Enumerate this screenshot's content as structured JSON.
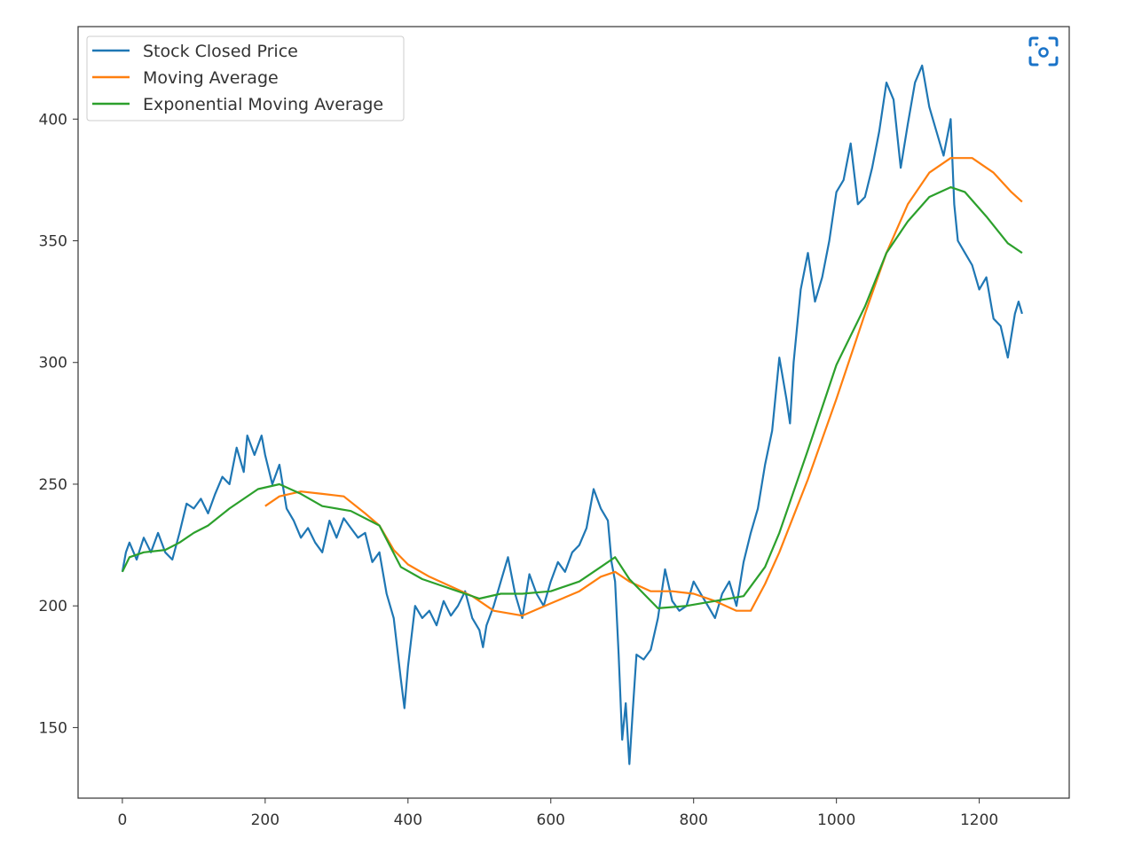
{
  "chart_data": {
    "type": "line",
    "title": "",
    "xlabel": "",
    "ylabel": "",
    "xlim": [
      -62,
      1326
    ],
    "ylim": [
      121,
      438
    ],
    "x_ticks": [
      0,
      200,
      400,
      600,
      800,
      1000,
      1200
    ],
    "y_ticks": [
      150,
      200,
      250,
      300,
      350,
      400
    ],
    "grid": false,
    "legend_position": "top-left",
    "series": [
      {
        "name": "Stock Closed Price",
        "color": "#1f77b4",
        "points": [
          [
            0,
            214
          ],
          [
            5,
            222
          ],
          [
            10,
            226
          ],
          [
            20,
            219
          ],
          [
            30,
            228
          ],
          [
            40,
            222
          ],
          [
            50,
            230
          ],
          [
            60,
            222
          ],
          [
            70,
            219
          ],
          [
            80,
            230
          ],
          [
            90,
            242
          ],
          [
            100,
            240
          ],
          [
            110,
            244
          ],
          [
            120,
            238
          ],
          [
            130,
            246
          ],
          [
            140,
            253
          ],
          [
            150,
            250
          ],
          [
            160,
            265
          ],
          [
            170,
            255
          ],
          [
            175,
            270
          ],
          [
            185,
            262
          ],
          [
            195,
            270
          ],
          [
            200,
            262
          ],
          [
            210,
            250
          ],
          [
            220,
            258
          ],
          [
            230,
            240
          ],
          [
            240,
            235
          ],
          [
            250,
            228
          ],
          [
            260,
            232
          ],
          [
            270,
            226
          ],
          [
            280,
            222
          ],
          [
            290,
            235
          ],
          [
            300,
            228
          ],
          [
            310,
            236
          ],
          [
            320,
            232
          ],
          [
            330,
            228
          ],
          [
            340,
            230
          ],
          [
            350,
            218
          ],
          [
            360,
            222
          ],
          [
            370,
            205
          ],
          [
            380,
            195
          ],
          [
            390,
            170
          ],
          [
            395,
            158
          ],
          [
            400,
            175
          ],
          [
            410,
            200
          ],
          [
            420,
            195
          ],
          [
            430,
            198
          ],
          [
            440,
            192
          ],
          [
            450,
            202
          ],
          [
            460,
            196
          ],
          [
            470,
            200
          ],
          [
            480,
            206
          ],
          [
            490,
            195
          ],
          [
            500,
            190
          ],
          [
            505,
            183
          ],
          [
            510,
            192
          ],
          [
            520,
            200
          ],
          [
            530,
            210
          ],
          [
            540,
            220
          ],
          [
            550,
            205
          ],
          [
            560,
            195
          ],
          [
            570,
            213
          ],
          [
            580,
            205
          ],
          [
            590,
            200
          ],
          [
            600,
            210
          ],
          [
            610,
            218
          ],
          [
            620,
            214
          ],
          [
            630,
            222
          ],
          [
            640,
            225
          ],
          [
            650,
            232
          ],
          [
            660,
            248
          ],
          [
            670,
            240
          ],
          [
            680,
            235
          ],
          [
            685,
            218
          ],
          [
            690,
            210
          ],
          [
            695,
            180
          ],
          [
            700,
            145
          ],
          [
            705,
            160
          ],
          [
            710,
            135
          ],
          [
            715,
            158
          ],
          [
            720,
            180
          ],
          [
            730,
            178
          ],
          [
            740,
            182
          ],
          [
            750,
            195
          ],
          [
            760,
            215
          ],
          [
            770,
            202
          ],
          [
            780,
            198
          ],
          [
            790,
            200
          ],
          [
            800,
            210
          ],
          [
            810,
            205
          ],
          [
            820,
            200
          ],
          [
            830,
            195
          ],
          [
            840,
            205
          ],
          [
            850,
            210
          ],
          [
            860,
            200
          ],
          [
            870,
            218
          ],
          [
            880,
            230
          ],
          [
            890,
            240
          ],
          [
            900,
            258
          ],
          [
            910,
            272
          ],
          [
            920,
            302
          ],
          [
            930,
            285
          ],
          [
            935,
            275
          ],
          [
            940,
            300
          ],
          [
            950,
            330
          ],
          [
            960,
            345
          ],
          [
            970,
            325
          ],
          [
            980,
            335
          ],
          [
            990,
            350
          ],
          [
            1000,
            370
          ],
          [
            1010,
            375
          ],
          [
            1020,
            390
          ],
          [
            1030,
            365
          ],
          [
            1040,
            368
          ],
          [
            1050,
            380
          ],
          [
            1060,
            395
          ],
          [
            1070,
            415
          ],
          [
            1080,
            408
          ],
          [
            1090,
            380
          ],
          [
            1100,
            398
          ],
          [
            1110,
            415
          ],
          [
            1120,
            422
          ],
          [
            1130,
            405
          ],
          [
            1140,
            395
          ],
          [
            1150,
            385
          ],
          [
            1160,
            400
          ],
          [
            1165,
            365
          ],
          [
            1170,
            350
          ],
          [
            1180,
            345
          ],
          [
            1190,
            340
          ],
          [
            1200,
            330
          ],
          [
            1210,
            335
          ],
          [
            1220,
            318
          ],
          [
            1230,
            315
          ],
          [
            1240,
            302
          ],
          [
            1250,
            320
          ],
          [
            1255,
            325
          ],
          [
            1260,
            320
          ]
        ]
      },
      {
        "name": "Moving Average",
        "color": "#ff7f0e",
        "points": [
          [
            200,
            241
          ],
          [
            220,
            245
          ],
          [
            250,
            247
          ],
          [
            280,
            246
          ],
          [
            310,
            245
          ],
          [
            340,
            238
          ],
          [
            360,
            233
          ],
          [
            380,
            223
          ],
          [
            400,
            217
          ],
          [
            430,
            212
          ],
          [
            460,
            208
          ],
          [
            490,
            204
          ],
          [
            520,
            198
          ],
          [
            560,
            196
          ],
          [
            600,
            201
          ],
          [
            640,
            206
          ],
          [
            670,
            212
          ],
          [
            690,
            214
          ],
          [
            710,
            210
          ],
          [
            740,
            206
          ],
          [
            770,
            206
          ],
          [
            800,
            205
          ],
          [
            830,
            202
          ],
          [
            860,
            198
          ],
          [
            880,
            198
          ],
          [
            900,
            209
          ],
          [
            920,
            222
          ],
          [
            960,
            252
          ],
          [
            1000,
            285
          ],
          [
            1040,
            320
          ],
          [
            1070,
            345
          ],
          [
            1100,
            365
          ],
          [
            1130,
            378
          ],
          [
            1160,
            384
          ],
          [
            1190,
            384
          ],
          [
            1220,
            378
          ],
          [
            1245,
            370
          ],
          [
            1260,
            366
          ]
        ]
      },
      {
        "name": "Exponential Moving Average",
        "color": "#2ca02c",
        "points": [
          [
            0,
            214
          ],
          [
            10,
            220
          ],
          [
            30,
            222
          ],
          [
            60,
            223
          ],
          [
            80,
            226
          ],
          [
            100,
            230
          ],
          [
            120,
            233
          ],
          [
            150,
            240
          ],
          [
            190,
            248
          ],
          [
            220,
            250
          ],
          [
            250,
            246
          ],
          [
            280,
            241
          ],
          [
            320,
            239
          ],
          [
            360,
            233
          ],
          [
            390,
            216
          ],
          [
            420,
            211
          ],
          [
            460,
            207
          ],
          [
            500,
            203
          ],
          [
            530,
            205
          ],
          [
            560,
            205
          ],
          [
            600,
            206
          ],
          [
            640,
            210
          ],
          [
            670,
            216
          ],
          [
            690,
            220
          ],
          [
            710,
            211
          ],
          [
            750,
            199
          ],
          [
            790,
            200
          ],
          [
            830,
            202
          ],
          [
            870,
            204
          ],
          [
            900,
            216
          ],
          [
            920,
            230
          ],
          [
            960,
            264
          ],
          [
            1000,
            299
          ],
          [
            1040,
            323
          ],
          [
            1070,
            345
          ],
          [
            1100,
            358
          ],
          [
            1130,
            368
          ],
          [
            1160,
            372
          ],
          [
            1180,
            370
          ],
          [
            1210,
            360
          ],
          [
            1240,
            349
          ],
          [
            1260,
            345
          ]
        ]
      }
    ]
  },
  "toolbar": {
    "icon": "camera-scan-icon",
    "accent": "#1a73c8"
  }
}
